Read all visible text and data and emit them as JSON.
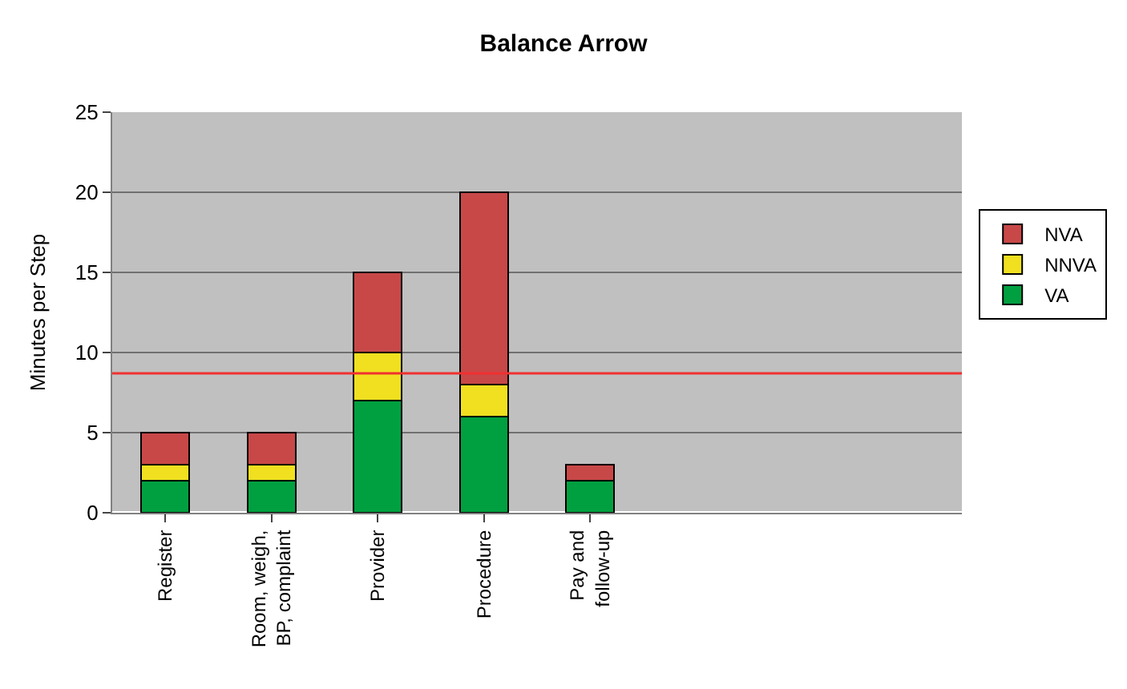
{
  "chart_data": {
    "type": "bar",
    "title": "Balance Arrow",
    "ylabel": "Minutes per Step",
    "stacked": true,
    "categories": [
      "Register",
      "Room, weigh, BP, complaint",
      "Provider",
      "Procedure",
      "Pay and follow-up",
      null,
      null,
      null
    ],
    "series": [
      {
        "name": "VA",
        "color": "#00a040",
        "values": [
          2,
          2,
          7,
          6,
          2,
          null,
          null,
          null
        ]
      },
      {
        "name": "NNVA",
        "color": "#f0e020",
        "values": [
          1,
          1,
          3,
          2,
          0,
          null,
          null,
          null
        ]
      },
      {
        "name": "NVA",
        "color": "#c84848",
        "values": [
          2,
          2,
          5,
          12,
          1,
          null,
          null,
          null
        ]
      }
    ],
    "ylim": [
      0,
      25
    ],
    "yticks": [
      0,
      5,
      10,
      15,
      20,
      25
    ],
    "grid": "y",
    "legend": "right",
    "ref_lines": [
      {
        "axis": "y",
        "value": 8.7,
        "color": "#f03030"
      }
    ]
  }
}
